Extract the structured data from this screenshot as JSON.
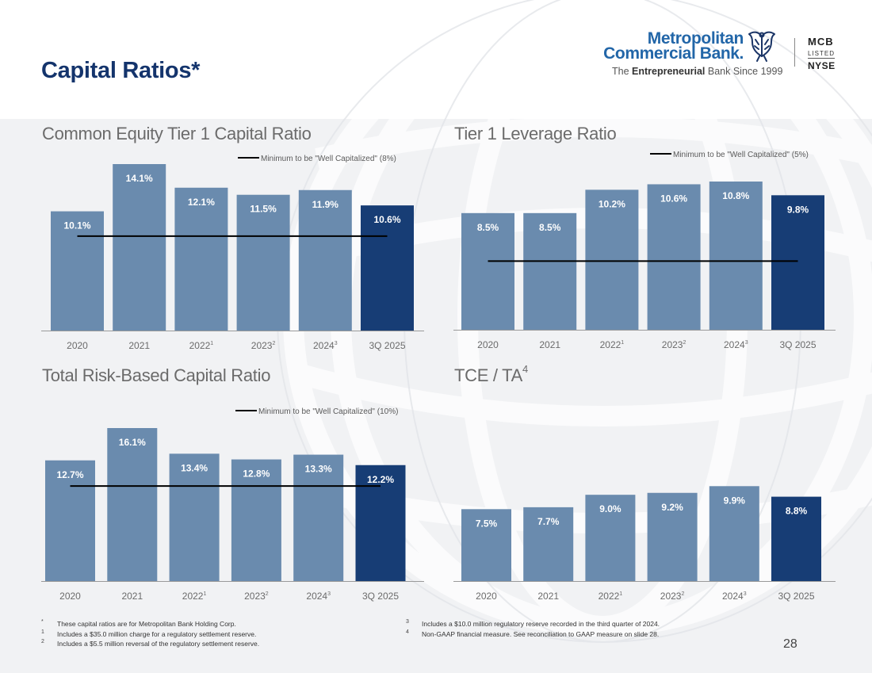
{
  "header": {
    "title": "Capital Ratios*"
  },
  "logo": {
    "name_line1": "Metropolitan",
    "name_line2": "Commercial Bank.",
    "tagline_prefix": "The ",
    "tagline_bold": "Entrepreneurial",
    "tagline_suffix": " Bank Since 1999",
    "ticker": "MCB",
    "listed": "LISTED",
    "exchange": "NYSE"
  },
  "colors": {
    "bar_historical": "#6a8bae",
    "bar_current": "#173d75",
    "title": "#14346c",
    "threshold_line": "#000000"
  },
  "chart_data": [
    {
      "type": "bar",
      "title": "Common Equity Tier 1 Capital Ratio",
      "title_sup": "",
      "categories": [
        {
          "label": "2020",
          "sup": ""
        },
        {
          "label": "2021",
          "sup": ""
        },
        {
          "label": "2022",
          "sup": "1"
        },
        {
          "label": "2023",
          "sup": "2"
        },
        {
          "label": "2024",
          "sup": "3"
        },
        {
          "label": "3Q 2025",
          "sup": ""
        }
      ],
      "values": [
        10.1,
        14.1,
        12.1,
        11.5,
        11.9,
        10.6
      ],
      "value_labels": [
        "10.1%",
        "14.1%",
        "12.1%",
        "11.5%",
        "11.9%",
        "10.6%"
      ],
      "highlight_index": 5,
      "threshold": {
        "value": 8,
        "label": "Minimum to be \"Well Capitalized\" (8%)"
      },
      "ylim": [
        0,
        14.1
      ],
      "xlabel": "",
      "ylabel": ""
    },
    {
      "type": "bar",
      "title": "Tier 1 Leverage Ratio",
      "title_sup": "",
      "categories": [
        {
          "label": "2020",
          "sup": ""
        },
        {
          "label": "2021",
          "sup": ""
        },
        {
          "label": "2022",
          "sup": "1"
        },
        {
          "label": "2023",
          "sup": "2"
        },
        {
          "label": "2024",
          "sup": "3"
        },
        {
          "label": "3Q 2025",
          "sup": ""
        }
      ],
      "values": [
        8.5,
        8.5,
        10.2,
        10.6,
        10.8,
        9.8
      ],
      "value_labels": [
        "8.5%",
        "8.5%",
        "10.2%",
        "10.6%",
        "10.8%",
        "9.8%"
      ],
      "highlight_index": 5,
      "threshold": {
        "value": 5,
        "label": "Minimum to be \"Well Capitalized\" (5%)"
      },
      "ylim": [
        0,
        10.8
      ],
      "xlabel": "",
      "ylabel": ""
    },
    {
      "type": "bar",
      "title": "Total Risk-Based Capital Ratio",
      "title_sup": "",
      "categories": [
        {
          "label": "2020",
          "sup": ""
        },
        {
          "label": "2021",
          "sup": ""
        },
        {
          "label": "2022",
          "sup": "1"
        },
        {
          "label": "2023",
          "sup": "2"
        },
        {
          "label": "2024",
          "sup": "3"
        },
        {
          "label": "3Q 2025",
          "sup": ""
        }
      ],
      "values": [
        12.7,
        16.1,
        13.4,
        12.8,
        13.3,
        12.2
      ],
      "value_labels": [
        "12.7%",
        "16.1%",
        "13.4%",
        "12.8%",
        "13.3%",
        "12.2%"
      ],
      "highlight_index": 5,
      "threshold": {
        "value": 10,
        "label": "Minimum to be \"Well Capitalized\" (10%)"
      },
      "ylim": [
        0,
        16.1
      ],
      "xlabel": "",
      "ylabel": ""
    },
    {
      "type": "bar",
      "title": "TCE / TA",
      "title_sup": "4",
      "categories": [
        {
          "label": "2020",
          "sup": ""
        },
        {
          "label": "2021",
          "sup": ""
        },
        {
          "label": "2022",
          "sup": "1"
        },
        {
          "label": "2023",
          "sup": "2"
        },
        {
          "label": "2024",
          "sup": "3"
        },
        {
          "label": "3Q 2025",
          "sup": ""
        }
      ],
      "values": [
        7.5,
        7.7,
        9.0,
        9.2,
        9.9,
        8.8
      ],
      "value_labels": [
        "7.5%",
        "7.7%",
        "9.0%",
        "9.2%",
        "9.9%",
        "8.8%"
      ],
      "highlight_index": 5,
      "threshold": null,
      "ylim": [
        0,
        19.6
      ],
      "xlabel": "",
      "ylabel": ""
    }
  ],
  "footnotes": {
    "left": [
      {
        "mark": "*",
        "text": "These capital ratios are for Metropolitan Bank Holding Corp."
      },
      {
        "mark": "1",
        "text": "Includes a $35.0 million charge for a regulatory settlement reserve."
      },
      {
        "mark": "2",
        "text": "Includes a $5.5 million reversal of the regulatory settlement reserve."
      }
    ],
    "right": [
      {
        "mark": "3",
        "text": "Includes a $10.0 million regulatory reserve recorded in the third quarter of 2024."
      },
      {
        "mark": "4",
        "text": "Non-GAAP financial measure. See reconciliation to GAAP measure on slide 28."
      }
    ]
  },
  "page_number": "28"
}
